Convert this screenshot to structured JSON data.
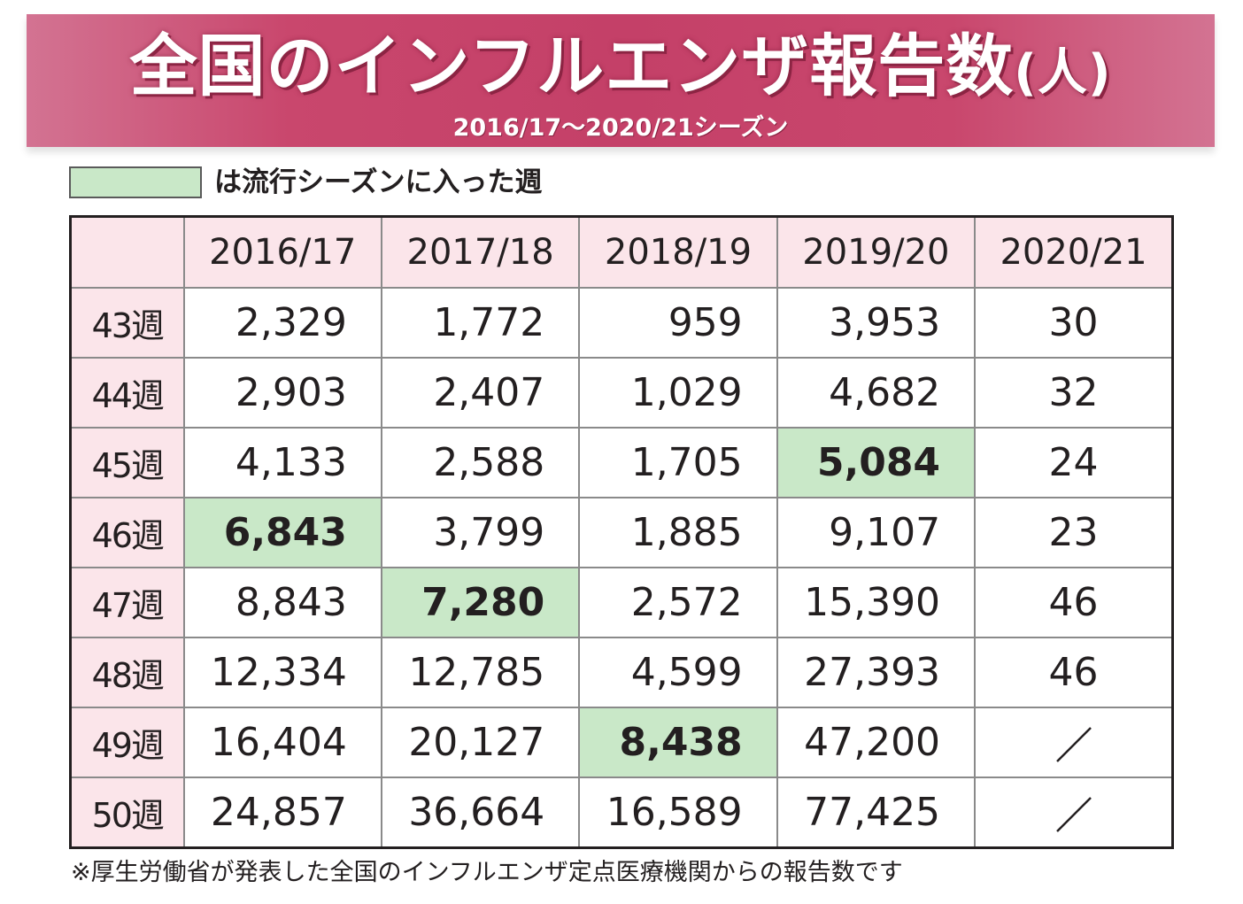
{
  "header": {
    "title": "全国のインフルエンザ報告数",
    "title_unit": "(人)",
    "subtitle": "2016/17～2020/21シーズン"
  },
  "legend": {
    "text": "は流行シーズンに入った週",
    "swatch_color": "#c9e8c8"
  },
  "colors": {
    "banner": "#c44068",
    "header_cell": "#fbe5ea",
    "highlight": "#c9e8c8"
  },
  "chart_data": {
    "type": "table",
    "title": "全国のインフルエンザ報告数(人)",
    "subtitle": "2016/17～2020/21シーズン",
    "columns": [
      "2016/17",
      "2017/18",
      "2018/19",
      "2019/20",
      "2020/21"
    ],
    "rows": [
      {
        "label": "43週",
        "values": [
          "2,329",
          "1,772",
          "959",
          "3,953",
          "30"
        ]
      },
      {
        "label": "44週",
        "values": [
          "2,903",
          "2,407",
          "1,029",
          "4,682",
          "32"
        ]
      },
      {
        "label": "45週",
        "values": [
          "4,133",
          "2,588",
          "1,705",
          "5,084",
          "24"
        ]
      },
      {
        "label": "46週",
        "values": [
          "6,843",
          "3,799",
          "1,885",
          "9,107",
          "23"
        ]
      },
      {
        "label": "47週",
        "values": [
          "8,843",
          "7,280",
          "2,572",
          "15,390",
          "46"
        ]
      },
      {
        "label": "48週",
        "values": [
          "12,334",
          "12,785",
          "4,599",
          "27,393",
          "46"
        ]
      },
      {
        "label": "49週",
        "values": [
          "16,404",
          "20,127",
          "8,438",
          "47,200",
          null
        ]
      },
      {
        "label": "50週",
        "values": [
          "24,857",
          "36,664",
          "16,589",
          "77,425",
          null
        ]
      }
    ],
    "epidemic_start": [
      {
        "season": "2016/17",
        "week": "46週",
        "value": "6,843"
      },
      {
        "season": "2017/18",
        "week": "47週",
        "value": "7,280"
      },
      {
        "season": "2018/19",
        "week": "49週",
        "value": "8,438"
      },
      {
        "season": "2019/20",
        "week": "45週",
        "value": "5,084"
      }
    ]
  },
  "footnote": "※厚生労働省が発表した全国のインフルエンザ定点医療機関からの報告数です"
}
